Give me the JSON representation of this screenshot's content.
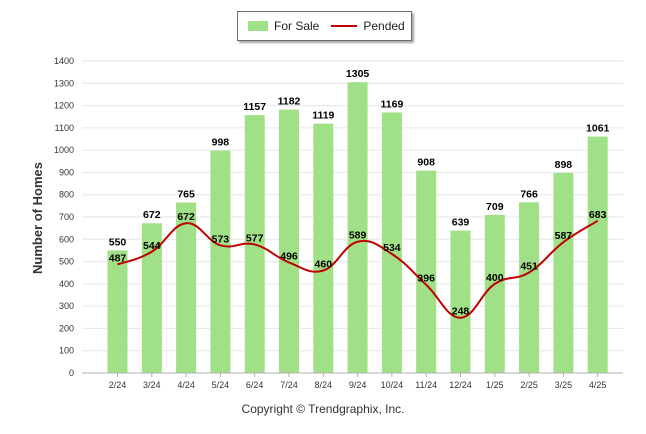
{
  "legend": {
    "bar_label": "For Sale",
    "line_label": "Pended"
  },
  "copyright": "Copyright © Trendgraphix, Inc.",
  "colors": {
    "bar": "#a0e087",
    "line": "#c00000",
    "grid": "#e6e6e6"
  },
  "chart_data": {
    "type": "bar",
    "title": "",
    "xlabel": "",
    "ylabel": "Number of Homes",
    "ylim": [
      0,
      1400
    ],
    "yticks": [
      0,
      100,
      200,
      300,
      400,
      500,
      600,
      700,
      800,
      900,
      1000,
      1100,
      1200,
      1300,
      1400
    ],
    "grid": true,
    "legend_position": "top-center",
    "categories": [
      "2/24",
      "3/24",
      "4/24",
      "5/24",
      "6/24",
      "7/24",
      "8/24",
      "9/24",
      "10/24",
      "11/24",
      "12/24",
      "1/25",
      "2/25",
      "3/25",
      "4/25"
    ],
    "series": [
      {
        "name": "For Sale",
        "type": "bar",
        "values": [
          550,
          672,
          765,
          998,
          1157,
          1182,
          1119,
          1305,
          1169,
          908,
          639,
          709,
          766,
          898,
          1061
        ]
      },
      {
        "name": "Pended",
        "type": "line",
        "values": [
          487,
          544,
          672,
          573,
          577,
          496,
          460,
          589,
          534,
          396,
          248,
          400,
          451,
          587,
          683
        ]
      }
    ]
  }
}
